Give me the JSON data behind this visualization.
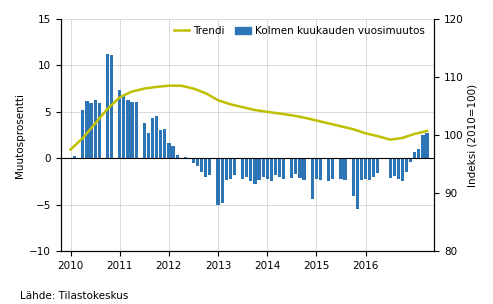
{
  "ylabel_left": "Muutosprosentti",
  "ylabel_right": "Indeksi (2010=100)",
  "source": "Lähde: Tilastokeskus",
  "ylim_left": [
    -10,
    15
  ],
  "ylim_right": [
    80,
    120
  ],
  "yticks_left": [
    -10,
    -5,
    0,
    5,
    10,
    15
  ],
  "yticks_right": [
    80,
    90,
    100,
    110,
    120
  ],
  "bar_color": "#2e75b6",
  "trend_color": "#bfbf00",
  "legend_label_trend": "Trendi",
  "legend_label_bar": "Kolmen kuukauden vuosimuutos",
  "bar_data": [
    0.0,
    0.2,
    5.2,
    6.2,
    6.0,
    6.3,
    6.0,
    11.2,
    11.1,
    7.3,
    6.8,
    6.3,
    6.1,
    6.1,
    3.8,
    2.7,
    4.3,
    4.6,
    3.0,
    3.1,
    1.6,
    1.3,
    0.3,
    0.1,
    -0.5,
    -0.8,
    -1.5,
    -2.0,
    -1.8,
    -5.0,
    -4.8,
    -2.3,
    -2.2,
    -1.8,
    -2.2,
    -2.0,
    -2.5,
    -2.8,
    -2.3,
    -2.0,
    -2.2,
    -2.5,
    -1.8,
    -2.0,
    -2.2,
    -2.1,
    -1.7,
    -2.1,
    -2.4,
    -4.4,
    -2.2,
    -2.3,
    -2.5,
    -2.2,
    -2.2,
    -2.3,
    -4.1,
    -5.5,
    -2.3,
    -2.2,
    -2.4,
    -2.0,
    -1.6,
    -2.1,
    -1.9,
    -2.2,
    -2.5,
    -1.5,
    -0.4,
    0.7,
    1.0,
    2.5,
    2.7
  ],
  "bar_times": [
    2010.0,
    2010.083,
    2010.25,
    2010.333,
    2010.417,
    2010.5,
    2010.583,
    2010.75,
    2010.833,
    2011.0,
    2011.083,
    2011.167,
    2011.25,
    2011.333,
    2011.5,
    2011.583,
    2011.667,
    2011.75,
    2011.833,
    2011.917,
    2012.0,
    2012.083,
    2012.167,
    2012.333,
    2012.5,
    2012.583,
    2012.667,
    2012.75,
    2012.833,
    2013.0,
    2013.083,
    2013.167,
    2013.25,
    2013.333,
    2013.5,
    2013.583,
    2013.667,
    2013.75,
    2013.833,
    2013.917,
    2014.0,
    2014.083,
    2014.167,
    2014.25,
    2014.333,
    2014.5,
    2014.583,
    2014.667,
    2014.75,
    2014.917,
    2015.0,
    2015.083,
    2015.25,
    2015.333,
    2015.5,
    2015.583,
    2015.75,
    2015.833,
    2015.917,
    2016.0,
    2016.083,
    2016.167,
    2016.25,
    2016.5,
    2016.583,
    2016.667,
    2016.75,
    2016.833,
    2016.917,
    2017.0,
    2017.083,
    2017.167,
    2017.25
  ],
  "trend_times": [
    2010.0,
    2010.25,
    2010.5,
    2010.75,
    2011.0,
    2011.25,
    2011.5,
    2011.75,
    2012.0,
    2012.25,
    2012.5,
    2012.75,
    2013.0,
    2013.25,
    2013.5,
    2013.75,
    2014.0,
    2014.25,
    2014.5,
    2014.75,
    2015.0,
    2015.25,
    2015.5,
    2015.75,
    2016.0,
    2016.25,
    2016.5,
    2016.75,
    2017.0,
    2017.25
  ],
  "trend_values": [
    97.5,
    99.5,
    102.0,
    104.5,
    106.5,
    107.5,
    108.0,
    108.3,
    108.5,
    108.5,
    108.0,
    107.2,
    106.0,
    105.3,
    104.8,
    104.3,
    104.0,
    103.7,
    103.4,
    103.0,
    102.5,
    102.0,
    101.5,
    101.0,
    100.3,
    99.8,
    99.2,
    99.5,
    100.2,
    100.7
  ],
  "xlim": [
    2009.8,
    2017.4
  ],
  "xticks": [
    2010,
    2011,
    2012,
    2013,
    2014,
    2015,
    2016
  ],
  "background_color": "#ffffff",
  "grid_color": "#cccccc"
}
